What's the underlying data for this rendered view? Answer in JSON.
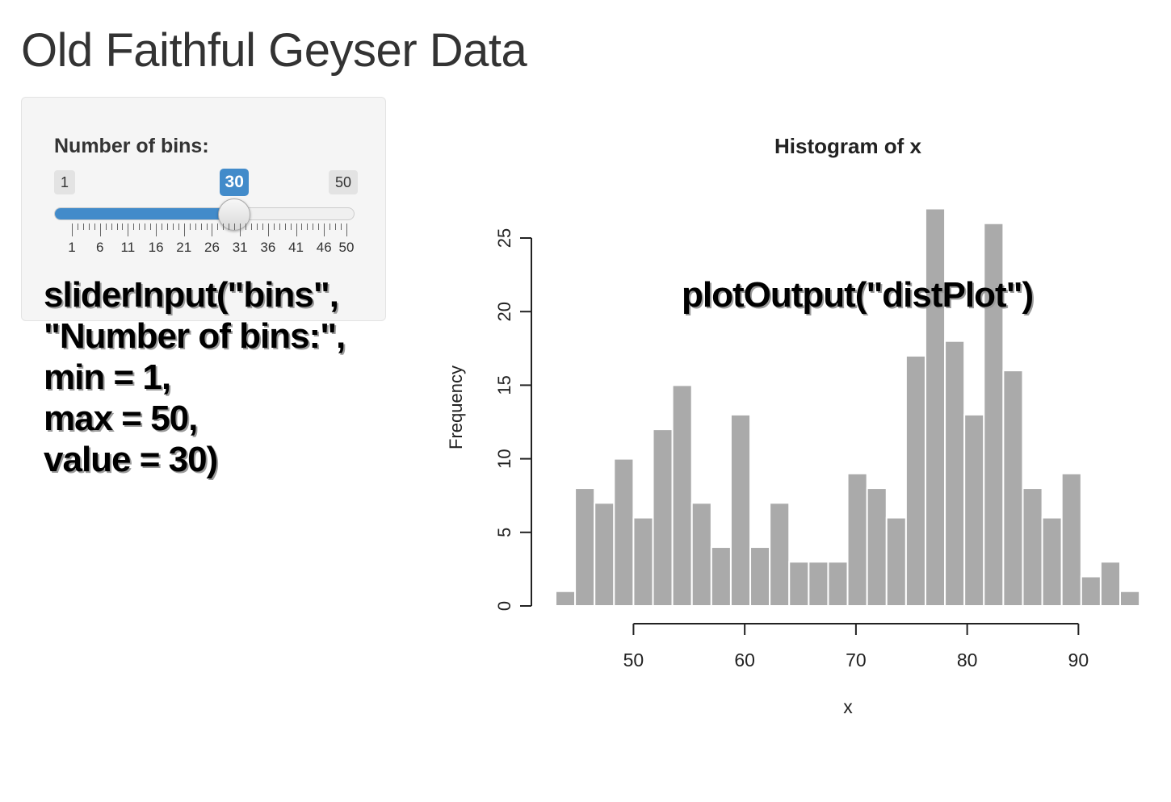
{
  "page": {
    "title": "Old Faithful Geyser Data"
  },
  "slider": {
    "label": "Number of bins:",
    "min": 1,
    "max": 50,
    "value": 30,
    "min_label": "1",
    "max_label": "50",
    "value_label": "30",
    "tick_labels": [
      "1",
      "6",
      "11",
      "16",
      "21",
      "26",
      "31",
      "36",
      "41",
      "46",
      "50"
    ],
    "accent_color": "#428bca"
  },
  "annotations": {
    "slider_code": [
      "sliderInput(\"bins\",",
      "\"Number of bins:\",",
      "min = 1,",
      "max = 50,",
      "value = 30)"
    ],
    "plot_code": "plotOutput(\"distPlot\")"
  },
  "chart_data": {
    "type": "bar",
    "title": "Histogram of x",
    "xlabel": "x",
    "ylabel": "Frequency",
    "bin_width": 1.75,
    "bin_start": 43,
    "values": [
      1,
      8,
      7,
      10,
      6,
      12,
      15,
      7,
      4,
      13,
      4,
      7,
      3,
      3,
      3,
      9,
      8,
      6,
      17,
      27,
      18,
      13,
      26,
      16,
      8,
      6,
      9,
      2,
      3,
      1
    ],
    "xlim": [
      43,
      96
    ],
    "ylim": [
      0,
      25
    ],
    "x_ticks": [
      "50",
      "60",
      "70",
      "80",
      "90"
    ],
    "y_ticks": [
      "0",
      "5",
      "10",
      "15",
      "20",
      "25"
    ],
    "bar_color": "#aaaaaa",
    "grid": false
  }
}
